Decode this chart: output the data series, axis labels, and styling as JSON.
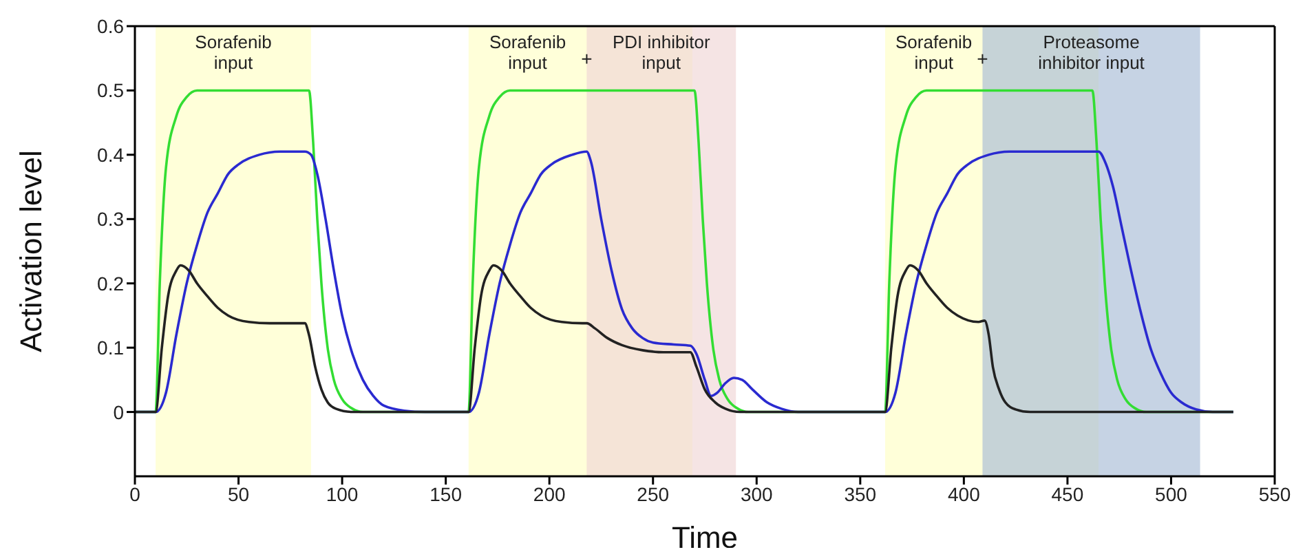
{
  "chart_data": {
    "type": "line",
    "xlabel": "Time",
    "ylabel": "Activation level",
    "xlim": [
      0,
      550
    ],
    "xticks": [
      0,
      50,
      100,
      150,
      200,
      250,
      300,
      350,
      400,
      450,
      500,
      550
    ],
    "ylim": [
      -0.1,
      0.6
    ],
    "yticks": [
      0,
      0.1,
      0.2,
      0.3,
      0.4,
      0.5,
      0.6
    ],
    "grid": false,
    "legend": false,
    "marker": "none",
    "line_style": "solid",
    "bands": [
      {
        "axis": "x",
        "from": 10,
        "to": 85,
        "label": "Sorafenib input",
        "color": "#ffffc4"
      },
      {
        "axis": "x",
        "from": 161,
        "to": 269,
        "label": "Sorafenib input",
        "color": "#ffffc4"
      },
      {
        "axis": "x",
        "from": 218,
        "to": 290,
        "label": "PDI inhibitor input",
        "color": "#efd6d6"
      },
      {
        "axis": "x",
        "from": 362,
        "to": 465,
        "label": "Sorafenib input",
        "color": "#ffffc4"
      },
      {
        "axis": "x",
        "from": 409,
        "to": 514,
        "label": "Proteasome inhibitor input",
        "color": "#a8bcd6"
      }
    ],
    "annotations": [
      {
        "text": "+",
        "x": 218,
        "y": 0.55
      },
      {
        "text": "+",
        "x": 409,
        "y": 0.55
      }
    ],
    "series": [
      {
        "color": "#33dd33",
        "x": [
          0,
          10,
          12,
          15,
          20,
          25,
          30,
          84,
          86,
          88,
          90,
          93,
          96,
          100,
          105,
          110,
          161,
          163,
          166,
          171,
          176,
          181,
          270,
          272,
          274,
          276,
          279,
          282,
          286,
          291,
          296,
          362,
          364,
          367,
          372,
          377,
          382,
          462,
          464,
          466,
          468,
          471,
          474,
          478,
          483,
          488,
          530
        ],
        "values": [
          0,
          0,
          0.2,
          0.38,
          0.46,
          0.49,
          0.5,
          0.5,
          0.42,
          0.3,
          0.2,
          0.1,
          0.05,
          0.02,
          0.005,
          0,
          0,
          0.2,
          0.38,
          0.46,
          0.49,
          0.5,
          0.5,
          0.42,
          0.3,
          0.2,
          0.1,
          0.05,
          0.02,
          0.005,
          0,
          0,
          0.2,
          0.38,
          0.46,
          0.49,
          0.5,
          0.5,
          0.42,
          0.3,
          0.2,
          0.1,
          0.05,
          0.02,
          0.005,
          0,
          0
        ]
      },
      {
        "color": "#2a2ad0",
        "x": [
          0,
          10,
          15,
          20,
          25,
          30,
          35,
          40,
          45,
          50,
          60,
          70,
          82,
          85,
          88,
          92,
          96,
          100,
          105,
          110,
          115,
          120,
          130,
          140,
          161,
          166,
          171,
          176,
          181,
          186,
          191,
          196,
          201,
          211,
          218,
          220,
          225,
          230,
          235,
          240,
          245,
          250,
          260,
          268,
          271,
          275,
          278,
          281,
          285,
          289,
          293,
          298,
          305,
          312,
          320,
          362,
          367,
          372,
          377,
          382,
          387,
          392,
          397,
          402,
          412,
          422,
          465,
          468,
          472,
          476,
          480,
          485,
          490,
          495,
          500,
          505,
          512,
          520,
          530
        ],
        "values": [
          0,
          0,
          0.03,
          0.12,
          0.2,
          0.26,
          0.31,
          0.34,
          0.37,
          0.385,
          0.4,
          0.405,
          0.405,
          0.4,
          0.37,
          0.3,
          0.22,
          0.15,
          0.09,
          0.05,
          0.025,
          0.01,
          0.002,
          0,
          0,
          0.03,
          0.12,
          0.2,
          0.26,
          0.31,
          0.34,
          0.37,
          0.385,
          0.4,
          0.405,
          0.39,
          0.3,
          0.22,
          0.16,
          0.13,
          0.115,
          0.108,
          0.105,
          0.103,
          0.09,
          0.05,
          0.025,
          0.03,
          0.045,
          0.053,
          0.05,
          0.035,
          0.015,
          0.005,
          0,
          0,
          0.03,
          0.12,
          0.2,
          0.26,
          0.31,
          0.34,
          0.37,
          0.385,
          0.4,
          0.405,
          0.405,
          0.39,
          0.35,
          0.29,
          0.23,
          0.16,
          0.1,
          0.06,
          0.03,
          0.015,
          0.004,
          0,
          0
        ]
      },
      {
        "color": "#222222",
        "x": [
          0,
          10,
          13,
          16,
          20,
          22,
          26,
          30,
          35,
          40,
          45,
          55,
          65,
          82,
          84,
          87,
          90,
          93,
          97,
          105,
          161,
          164,
          167,
          171,
          173,
          177,
          181,
          186,
          191,
          196,
          206,
          216,
          218,
          222,
          228,
          235,
          245,
          255,
          268,
          271,
          275,
          280,
          285,
          292,
          362,
          365,
          368,
          372,
          374,
          378,
          382,
          387,
          392,
          397,
          407,
          410,
          412,
          414,
          417,
          420,
          425,
          432,
          530
        ],
        "values": [
          0,
          0,
          0.1,
          0.18,
          0.22,
          0.228,
          0.22,
          0.2,
          0.18,
          0.162,
          0.15,
          0.14,
          0.138,
          0.138,
          0.12,
          0.07,
          0.035,
          0.015,
          0.005,
          0,
          0,
          0.1,
          0.18,
          0.22,
          0.228,
          0.22,
          0.2,
          0.18,
          0.162,
          0.15,
          0.14,
          0.138,
          0.138,
          0.13,
          0.115,
          0.104,
          0.096,
          0.093,
          0.093,
          0.07,
          0.035,
          0.015,
          0.005,
          0,
          0,
          0.1,
          0.18,
          0.22,
          0.228,
          0.22,
          0.2,
          0.18,
          0.162,
          0.15,
          0.14,
          0.142,
          0.12,
          0.07,
          0.035,
          0.015,
          0.004,
          0,
          0
        ]
      }
    ]
  }
}
